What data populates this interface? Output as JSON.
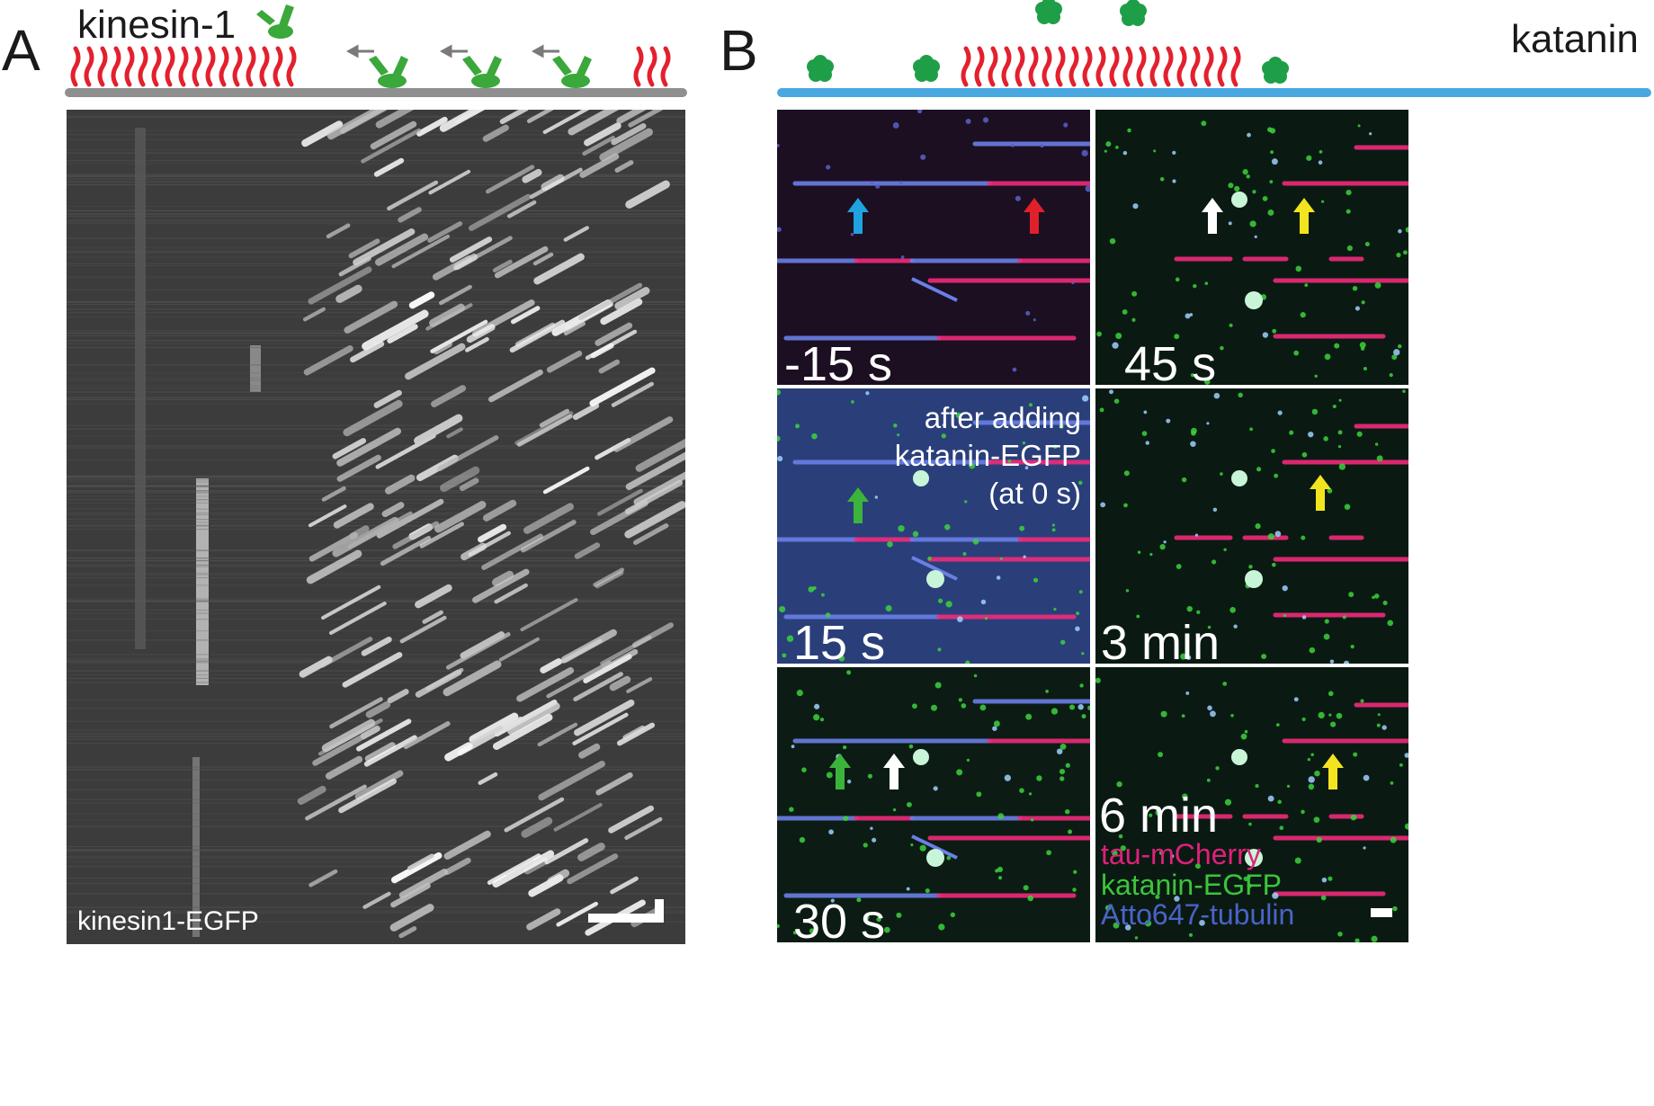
{
  "panel_a": {
    "letter": "A",
    "protein_label": "kinesin-1",
    "kymo_label": "kinesin1-EGFP",
    "colors": {
      "tau": "#e3202e",
      "kinesin": "#3aa83a",
      "mt": "#8f8f8f",
      "arrow": "#7a7a7a"
    }
  },
  "panel_b": {
    "letter": "B",
    "protein_label": "katanin",
    "note_lines": [
      "after adding",
      "katanin-EGFP",
      "(at 0 s)"
    ],
    "timepoints": [
      "-15 s",
      "15 s",
      "30 s",
      "45 s",
      "3 min",
      "6 min"
    ],
    "legend": [
      {
        "text": "tau-mCherry",
        "color": "#e0207a"
      },
      {
        "text": "katanin-EGFP",
        "color": "#3cc43c"
      },
      {
        "text": "Atto647-tubulin",
        "color": "#4a63c8"
      }
    ],
    "colors": {
      "tau": "#e3202e",
      "katanin": "#1f9e48",
      "mt": "#4aa8e0"
    },
    "arrow_colors": {
      "blue": "#1fa3e0",
      "red": "#e0202a",
      "white": "#ffffff",
      "yellow": "#f2e520",
      "green": "#3cb43c"
    }
  }
}
